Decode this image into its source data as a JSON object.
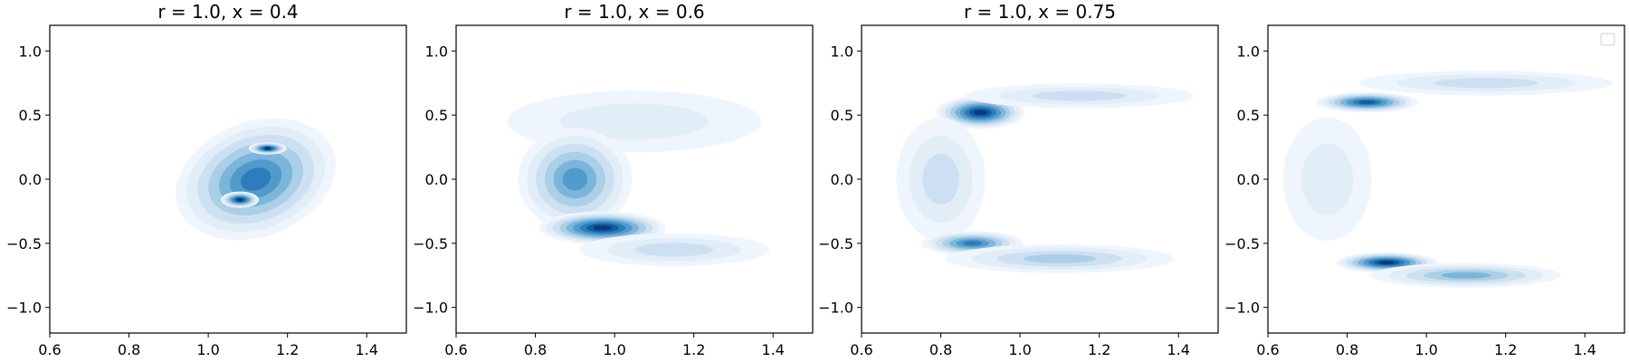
{
  "chart_data": [
    {
      "type": "kde_contour",
      "title": "r = 1.0, x = 0.4",
      "xlim": [
        0.6,
        1.5
      ],
      "ylim": [
        -1.2,
        1.2
      ],
      "xticks": [
        0.6,
        0.8,
        1.0,
        1.2,
        1.4
      ],
      "yticks": [
        -1.0,
        -0.5,
        0.0,
        0.5,
        1.0
      ],
      "grid": false,
      "legend": false,
      "density_clusters": [
        {
          "center": [
            1.12,
            0.0
          ],
          "spread": [
            0.13,
            0.28
          ],
          "tilt": 0.35,
          "peak_level": 7
        },
        {
          "center": [
            1.15,
            0.24
          ],
          "spread": [
            0.03,
            0.03
          ],
          "peak_level": 9
        },
        {
          "center": [
            1.08,
            -0.16
          ],
          "spread": [
            0.03,
            0.04
          ],
          "peak_level": 9
        }
      ]
    },
    {
      "type": "kde_contour",
      "title": "r = 1.0, x = 0.6",
      "xlim": [
        0.6,
        1.5
      ],
      "ylim": [
        -1.2,
        1.2
      ],
      "xticks": [
        0.6,
        0.8,
        1.0,
        1.2,
        1.4
      ],
      "yticks": [
        -1.0,
        -0.5,
        0.0,
        0.5,
        1.0
      ],
      "grid": false,
      "legend": false,
      "density_clusters": [
        {
          "center": [
            1.05,
            0.45
          ],
          "spread": [
            0.2,
            0.15
          ],
          "peak_level": 2
        },
        {
          "center": [
            0.9,
            0.0
          ],
          "spread": [
            0.09,
            0.25
          ],
          "peak_level": 6
        },
        {
          "center": [
            0.97,
            -0.38
          ],
          "spread": [
            0.1,
            0.08
          ],
          "peak_level": 9
        },
        {
          "center": [
            1.15,
            -0.55
          ],
          "spread": [
            0.15,
            0.08
          ],
          "peak_level": 3
        }
      ]
    },
    {
      "type": "kde_contour",
      "title": "r = 1.0, x = 0.75",
      "xlim": [
        0.6,
        1.5
      ],
      "ylim": [
        -1.2,
        1.2
      ],
      "xticks": [
        0.6,
        0.8,
        1.0,
        1.2,
        1.4
      ],
      "yticks": [
        -1.0,
        -0.5,
        0.0,
        0.5,
        1.0
      ],
      "grid": false,
      "legend": false,
      "density_clusters": [
        {
          "center": [
            0.9,
            0.52
          ],
          "spread": [
            0.07,
            0.08
          ],
          "peak_level": 9
        },
        {
          "center": [
            1.15,
            0.65
          ],
          "spread": [
            0.18,
            0.06
          ],
          "peak_level": 3
        },
        {
          "center": [
            0.8,
            0.0
          ],
          "spread": [
            0.07,
            0.3
          ],
          "peak_level": 3
        },
        {
          "center": [
            0.88,
            -0.5
          ],
          "spread": [
            0.08,
            0.06
          ],
          "peak_level": 7
        },
        {
          "center": [
            1.1,
            -0.62
          ],
          "spread": [
            0.18,
            0.07
          ],
          "peak_level": 4
        }
      ]
    },
    {
      "type": "kde_contour",
      "title": "",
      "xlim": [
        0.6,
        1.5
      ],
      "ylim": [
        -1.2,
        1.2
      ],
      "xticks": [
        0.6,
        0.8,
        1.0,
        1.2,
        1.4
      ],
      "yticks": [
        -1.0,
        -0.5,
        0.0,
        0.5,
        1.0
      ],
      "grid": false,
      "legend": true,
      "legend_position": "top-right",
      "density_clusters": [
        {
          "center": [
            0.85,
            0.6
          ],
          "spread": [
            0.08,
            0.05
          ],
          "peak_level": 8
        },
        {
          "center": [
            1.15,
            0.75
          ],
          "spread": [
            0.2,
            0.06
          ],
          "peak_level": 3
        },
        {
          "center": [
            0.75,
            0.0
          ],
          "spread": [
            0.07,
            0.3
          ],
          "peak_level": 2
        },
        {
          "center": [
            0.9,
            -0.65
          ],
          "spread": [
            0.08,
            0.05
          ],
          "peak_level": 9
        },
        {
          "center": [
            1.1,
            -0.75
          ],
          "spread": [
            0.15,
            0.06
          ],
          "peak_level": 5
        }
      ]
    }
  ],
  "colors": [
    "#eff5fc",
    "#dce9f6",
    "#c6dbef",
    "#9ecae1",
    "#6baed6",
    "#4292c6",
    "#2171b5",
    "#08519c",
    "#08306b"
  ]
}
